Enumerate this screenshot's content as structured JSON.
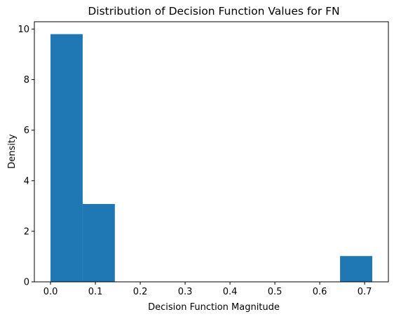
{
  "chart_data": {
    "type": "bar",
    "title": "Distribution of Decision Function Values for FN",
    "xlabel": "Decision Function Magnitude",
    "ylabel": "Density",
    "bins": [
      {
        "x0": 0.0,
        "x1": 0.0717,
        "value": 9.8
      },
      {
        "x0": 0.0717,
        "x1": 0.1434,
        "value": 3.08
      },
      {
        "x0": 0.1434,
        "x1": 0.2151,
        "value": 0
      },
      {
        "x0": 0.2151,
        "x1": 0.2868,
        "value": 0
      },
      {
        "x0": 0.2868,
        "x1": 0.3585,
        "value": 0
      },
      {
        "x0": 0.3585,
        "x1": 0.4302,
        "value": 0
      },
      {
        "x0": 0.4302,
        "x1": 0.5019,
        "value": 0
      },
      {
        "x0": 0.5019,
        "x1": 0.5736,
        "value": 0
      },
      {
        "x0": 0.5736,
        "x1": 0.6453,
        "value": 0
      },
      {
        "x0": 0.6453,
        "x1": 0.717,
        "value": 1.02
      }
    ],
    "xlim": [
      -0.036,
      0.753
    ],
    "ylim": [
      0,
      10.29
    ],
    "xticks": [
      "0.0",
      "0.1",
      "0.2",
      "0.3",
      "0.4",
      "0.5",
      "0.6",
      "0.7"
    ],
    "xtick_values": [
      0.0,
      0.1,
      0.2,
      0.3,
      0.4,
      0.5,
      0.6,
      0.7
    ],
    "yticks": [
      "0",
      "2",
      "4",
      "6",
      "8",
      "10"
    ],
    "ytick_values": [
      0,
      2,
      4,
      6,
      8,
      10
    ],
    "bar_color": "#1f77b4",
    "grid": false,
    "legend": "none"
  }
}
